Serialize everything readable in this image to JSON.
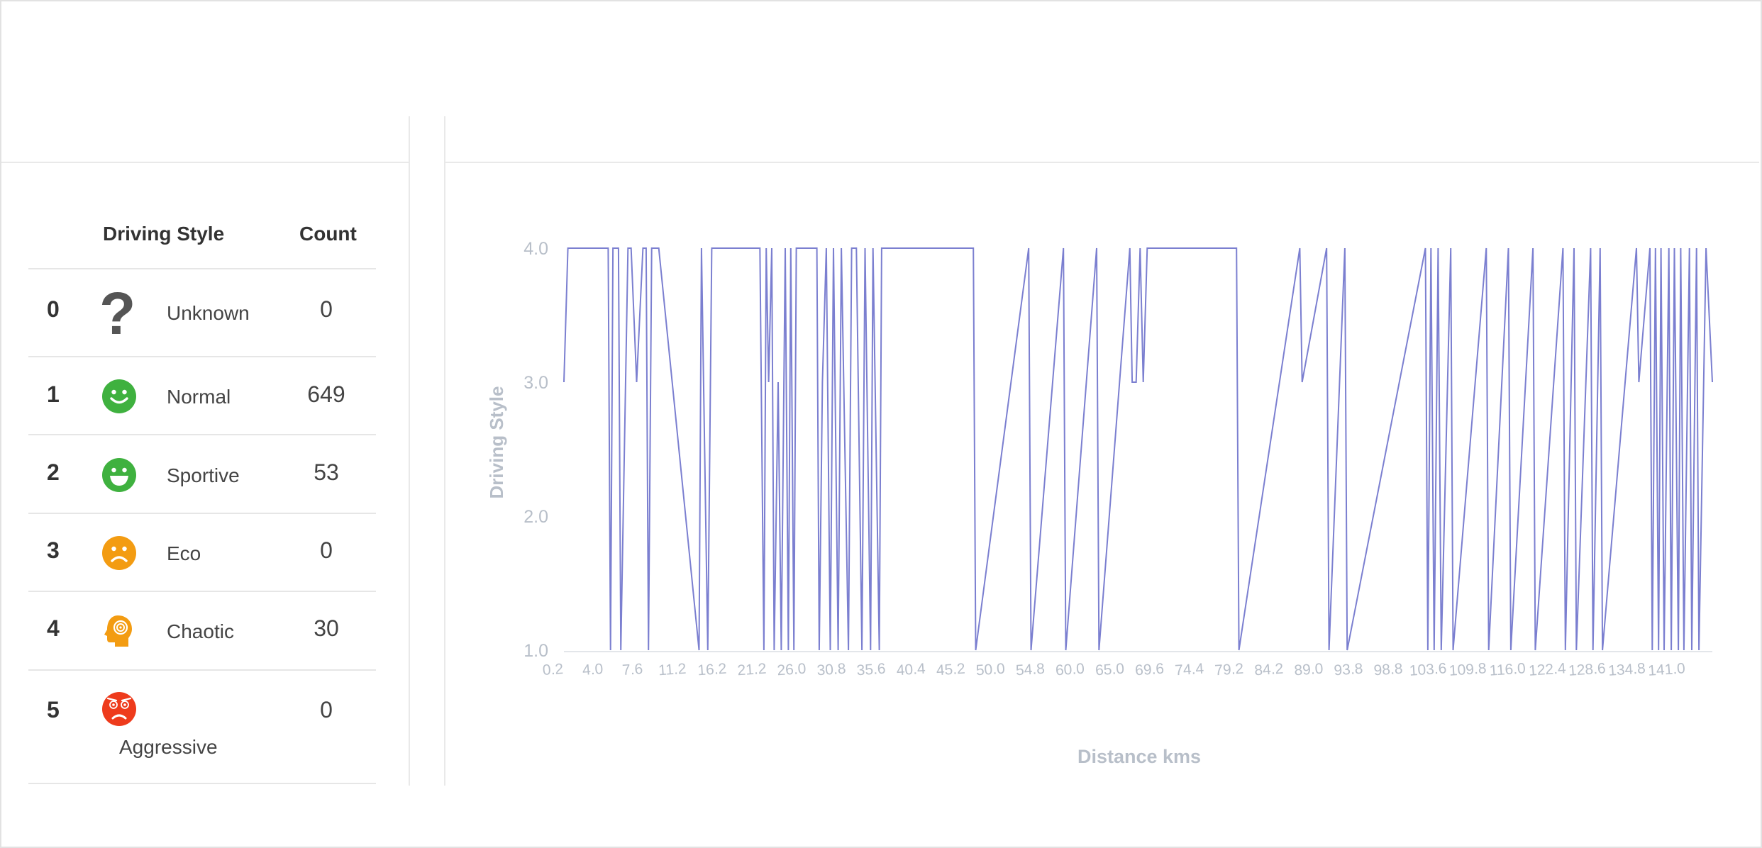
{
  "table": {
    "header_style": "Driving Style",
    "header_count": "Count",
    "rows": [
      {
        "index": "0",
        "label": "Unknown",
        "count": "0",
        "icon": "question-icon"
      },
      {
        "index": "1",
        "label": "Normal",
        "count": "649",
        "icon": "smile-icon"
      },
      {
        "index": "2",
        "label": "Sportive",
        "count": "53",
        "icon": "grin-icon"
      },
      {
        "index": "3",
        "label": "Eco",
        "count": "0",
        "icon": "frown-icon"
      },
      {
        "index": "4",
        "label": "Chaotic",
        "count": "30",
        "icon": "head-swirl-icon"
      },
      {
        "index": "5",
        "label": "Aggressive",
        "count": "0",
        "icon": "angry-icon"
      }
    ]
  },
  "colors": {
    "line": "#7b7fd0",
    "axis_text": "#b8bfc9",
    "green": "#3fb13f",
    "orange": "#f39c12",
    "red": "#ee3b1c"
  },
  "chart_data": {
    "type": "line",
    "xlabel": "Distance kms",
    "ylabel": "Driving Style",
    "ylim": [
      1.0,
      4.0
    ],
    "yticks": [
      "1.0",
      "2.0",
      "3.0",
      "4.0"
    ],
    "xticks": [
      "0.2",
      "4.0",
      "7.6",
      "11.2",
      "16.2",
      "21.2",
      "26.0",
      "30.8",
      "35.6",
      "40.4",
      "45.2",
      "50.0",
      "54.8",
      "60.0",
      "65.0",
      "69.6",
      "74.4",
      "79.2",
      "84.2",
      "89.0",
      "93.8",
      "98.8",
      "103.6",
      "109.8",
      "116.0",
      "122.4",
      "128.6",
      "134.8",
      "141.0"
    ],
    "xlim": [
      0.2,
      145.5
    ],
    "grid": false,
    "series": [
      {
        "x": [
          0.2,
          0.7,
          5.8,
          6.1,
          6.4,
          7.1,
          7.4,
          8.3,
          8.7,
          9.4,
          10.2,
          10.6,
          10.9,
          11.3,
          12.2,
          17.3,
          17.6,
          18.4,
          18.9,
          25.0,
          25.5,
          25.8,
          26.1,
          26.5,
          26.8,
          27.3,
          27.7,
          28.2,
          28.6,
          28.9,
          29.3,
          29.6,
          32.2,
          32.5,
          32.9,
          33.4,
          33.9,
          34.3,
          34.9,
          35.3,
          36.2,
          36.6,
          37.2,
          37.9,
          38.3,
          39.0,
          39.3,
          40.1,
          40.4,
          52.0,
          52.3,
          59.0,
          59.3,
          63.4,
          63.7,
          67.6,
          67.9,
          71.8,
          72.1,
          72.6,
          73.1,
          73.5,
          74.0,
          85.3,
          85.6,
          93.3,
          93.6,
          96.7,
          97.0,
          99.0,
          99.3,
          109.2,
          109.5,
          109.9,
          110.3,
          110.8,
          111.2,
          112.4,
          112.7,
          116.9,
          117.2,
          119.7,
          120.0,
          122.8,
          123.1,
          126.6,
          126.9,
          128.0,
          128.3,
          130.1,
          130.4,
          131.3,
          131.6,
          135.9,
          136.2,
          137.6,
          137.9,
          138.3,
          138.7,
          139.0,
          139.4,
          140.0,
          140.3,
          140.7,
          141.2,
          141.5,
          141.9,
          142.6,
          142.9,
          143.5,
          143.8,
          144.7,
          145.5
        ],
        "y": [
          3,
          4,
          4,
          1,
          4,
          4,
          1,
          4,
          4,
          3,
          4,
          4,
          1,
          4,
          4,
          1,
          4,
          1,
          4,
          4,
          1,
          4,
          3,
          4,
          1,
          3,
          1,
          4,
          1,
          4,
          1,
          4,
          4,
          1,
          3,
          4,
          1,
          4,
          1,
          4,
          1,
          4,
          4,
          1,
          4,
          1,
          4,
          1,
          4,
          4,
          1,
          4,
          1,
          4,
          1,
          4,
          1,
          4,
          3,
          3,
          4,
          3,
          4,
          4,
          1,
          4,
          3,
          4,
          1,
          4,
          1,
          4,
          1,
          4,
          1,
          4,
          1,
          4,
          1,
          4,
          1,
          4,
          1,
          4,
          1,
          4,
          1,
          4,
          1,
          4,
          1,
          4,
          1,
          4,
          3,
          4,
          1,
          4,
          1,
          4,
          1,
          4,
          1,
          4,
          1,
          4,
          1,
          4,
          1,
          4,
          1,
          4,
          3
        ]
      }
    ]
  }
}
